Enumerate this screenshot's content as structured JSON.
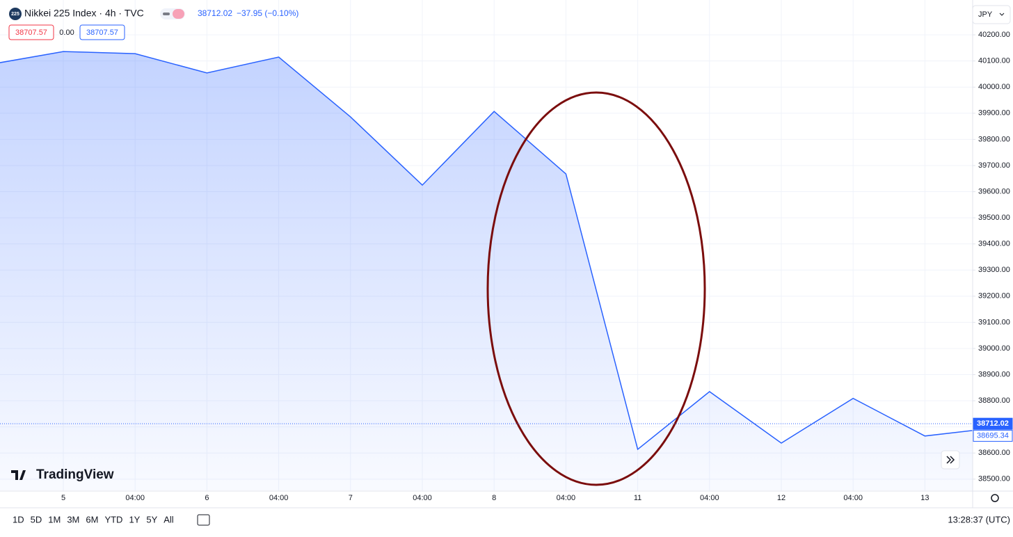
{
  "header": {
    "icon": "225",
    "symbol": "Nikkei 225 Index · 4h · TVC",
    "change": "−37.95 (−0.10%)",
    "bid": "38707.57",
    "spread": "0.00",
    "ask": "38707.57",
    "currency": "JPY"
  },
  "toolbar": {
    "ranges": [
      "1D",
      "5D",
      "1M",
      "3M",
      "6M",
      "YTD",
      "1Y",
      "5Y",
      "All"
    ],
    "clock": "13:28:37 (UTC)"
  },
  "logo": "TradingView",
  "chart_data": {
    "type": "area",
    "color": "#2962ff",
    "categories": [
      null,
      "5",
      "04:00",
      "6",
      "04:00",
      "7",
      "04:00",
      "8",
      "04:00",
      "11",
      "04:00",
      "12",
      "04:00",
      "13",
      null
    ],
    "values": [
      40088,
      40136,
      40128,
      40054,
      40115,
      39886,
      39625,
      39907,
      39668,
      38614,
      38835,
      38638,
      38809,
      38665,
      38697
    ],
    "ylim": [
      38457,
      40320
    ],
    "yticks": [
      {
        "value": 38500,
        "label": "38500.00"
      },
      {
        "value": 38600,
        "label": "38600.00"
      },
      {
        "value": 38700,
        "label": "38700.00"
      },
      {
        "value": 38800,
        "label": "38800.00"
      },
      {
        "value": 38900,
        "label": "38900.00"
      },
      {
        "value": 39000,
        "label": "39000.00"
      },
      {
        "value": 39100,
        "label": "39100.00"
      },
      {
        "value": 39200,
        "label": "39200.00"
      },
      {
        "value": 39300,
        "label": "39300.00"
      },
      {
        "value": 39400,
        "label": "39400.00"
      },
      {
        "value": 39500,
        "label": "39500.00"
      },
      {
        "value": 39600,
        "label": "39600.00"
      },
      {
        "value": 39700,
        "label": "39700.00"
      },
      {
        "value": 39800,
        "label": "39800.00"
      },
      {
        "value": 39900,
        "label": "39900.00"
      },
      {
        "value": 40000,
        "label": "40000.00"
      },
      {
        "value": 40100,
        "label": "40100.00"
      },
      {
        "value": 40200,
        "label": "40200.00"
      }
    ],
    "price_lines": [
      {
        "value": 38712.02,
        "label": "38712.02"
      },
      {
        "value": 38695.34,
        "label": "38695.34"
      }
    ],
    "grid": true
  }
}
